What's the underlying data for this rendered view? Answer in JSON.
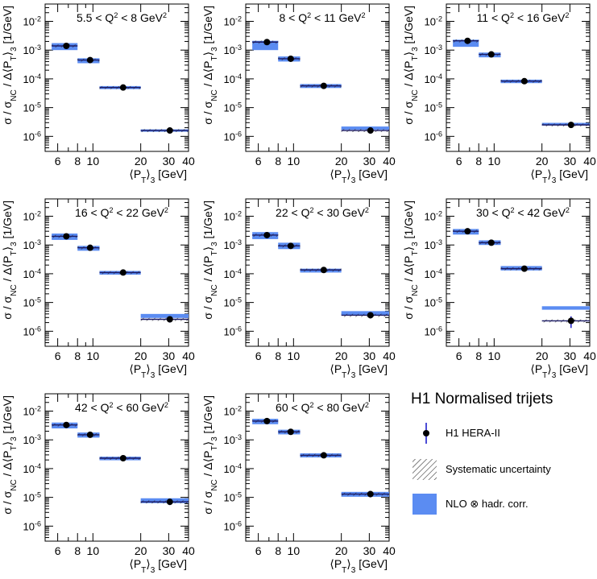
{
  "chart_data": {
    "type": "scatter",
    "title": "H1 Normalised trijets",
    "xlabel": "⟨P_T⟩_3 [GeV]",
    "xlabel_parts": [
      "⟨P",
      "T",
      "⟩",
      "3",
      " [GeV]"
    ],
    "ylabel": "σ / σ_NC / Δ⟨P_T⟩_3 [1/GeV]",
    "ylabel_parts": [
      "σ / σ",
      "NC",
      " / Δ⟨P",
      "T",
      "⟩",
      "3",
      " [1/GeV]"
    ],
    "xscale": "log",
    "yscale": "log",
    "xlim": [
      5,
      40
    ],
    "ylim": [
      3e-07,
      0.04
    ],
    "xticks": [
      6,
      8,
      10,
      20,
      30,
      40
    ],
    "yticks": [
      {
        "v": 1e-06,
        "base": "10",
        "exp": "-6"
      },
      {
        "v": 1e-05,
        "base": "10",
        "exp": "-5"
      },
      {
        "v": 0.0001,
        "base": "10",
        "exp": "-4"
      },
      {
        "v": 0.001,
        "base": "10",
        "exp": "-3"
      },
      {
        "v": 0.01,
        "base": "10",
        "exp": "-2"
      }
    ],
    "bins": [
      [
        5.5,
        8
      ],
      [
        8,
        11
      ],
      [
        11,
        20
      ],
      [
        20,
        40
      ]
    ],
    "x_centers": [
      6.8,
      9.6,
      15.5,
      30.5
    ],
    "panels": [
      {
        "label": "5.5 < Q² < 8 GeV²",
        "label_parts": [
          "5.5 < Q",
          "2",
          " < 8 GeV",
          "2"
        ],
        "data": [
          0.0014,
          0.00045,
          5e-05,
          1.6e-06
        ],
        "err": [
          0.0003,
          5e-05,
          5e-06,
          1e-07
        ],
        "nlo": [
          [
            0.001,
            0.00175
          ],
          [
            0.00035,
            0.00052
          ],
          [
            4.4e-05,
            5.6e-05
          ],
          [
            1.45e-06,
            1.75e-06
          ]
        ]
      },
      {
        "label": "8 < Q² < 11 GeV²",
        "label_parts": [
          "8 < Q",
          "2",
          " < 11 GeV",
          "2"
        ],
        "data": [
          0.0019,
          0.0005,
          5.7e-05,
          1.6e-06
        ],
        "err": [
          0.0002,
          5e-05,
          6e-06,
          3.5e-07
        ],
        "nlo": [
          [
            0.001,
            0.0021
          ],
          [
            0.0004,
            0.0006
          ],
          [
            4.8e-05,
            6.6e-05
          ],
          [
            1.7e-06,
            2.2e-06
          ]
        ]
      },
      {
        "label": "11 < Q² < 16 GeV²",
        "label_parts": [
          "11 < Q",
          "2",
          " < 16 GeV",
          "2"
        ],
        "data": [
          0.0021,
          0.00071,
          8.3e-05,
          2.5e-06
        ],
        "err": [
          0.0002,
          7e-05,
          8e-06,
          2e-07
        ],
        "nlo": [
          [
            0.0013,
            0.0023
          ],
          [
            0.00056,
            0.00082
          ],
          [
            7.1e-05,
            9.4e-05
          ],
          [
            2.4e-06,
            2.95e-06
          ]
        ]
      },
      {
        "label": "16 < Q² < 22 GeV²",
        "label_parts": [
          "16 < Q",
          "2",
          " < 22 GeV",
          "2"
        ],
        "data": [
          0.002,
          0.0008,
          0.00011,
          2.6e-06
        ],
        "err": [
          0.0002,
          8e-05,
          1e-05,
          6e-07
        ],
        "nlo": [
          [
            0.0015,
            0.0025
          ],
          [
            0.00063,
            0.00093
          ],
          [
            9.3e-05,
            0.000125
          ],
          [
            2.9e-06,
            4e-06
          ]
        ]
      },
      {
        "label": "22 < Q² < 30 GeV²",
        "label_parts": [
          "22 < Q",
          "2",
          " < 30 GeV",
          "2"
        ],
        "data": [
          0.0022,
          0.00093,
          0.000135,
          3.6e-06
        ],
        "err": [
          0.0002,
          9e-05,
          1.3e-05,
          8e-07
        ],
        "nlo": [
          [
            0.0016,
            0.0028
          ],
          [
            0.00072,
            0.0012
          ],
          [
            0.00011,
            0.00015
          ],
          [
            3.7e-06,
            5e-06
          ]
        ]
      },
      {
        "label": "30 < Q² < 42 GeV²",
        "label_parts": [
          "30 < Q",
          "2",
          " < 42 GeV",
          "2"
        ],
        "data": [
          0.003,
          0.0012,
          0.00015,
          2.3e-06
        ],
        "err": [
          0.0003,
          0.00011,
          1.5e-05,
          1e-06
        ],
        "nlo": [
          [
            0.0023,
            0.0036
          ],
          [
            0.001,
            0.00145
          ],
          [
            0.00013,
            0.000185
          ],
          [
            5.6e-06,
            7.4e-06
          ]
        ]
      },
      {
        "label": "42 < Q² < 60 GeV²",
        "label_parts": [
          "42 < Q",
          "2",
          " < 60 GeV",
          "2"
        ],
        "data": [
          0.0033,
          0.0015,
          0.00023,
          7e-06
        ],
        "err": [
          0.0003,
          0.00014,
          2e-05,
          1.6e-06
        ],
        "nlo": [
          [
            0.0025,
            0.004
          ],
          [
            0.0012,
            0.0018
          ],
          [
            0.000195,
            0.00026
          ],
          [
            6.3e-06,
            9.3e-06
          ]
        ]
      },
      {
        "label": "60 < Q² < 80 GeV²",
        "label_parts": [
          "60 < Q",
          "2",
          " < 80 GeV",
          "2"
        ],
        "data": [
          0.0045,
          0.0019,
          0.00029,
          1.3e-05
        ],
        "err": [
          0.0004,
          0.00018,
          2.5e-05,
          3e-06
        ],
        "nlo": [
          [
            0.0035,
            0.0054
          ],
          [
            0.00155,
            0.00225
          ],
          [
            0.000245,
            0.00034
          ],
          [
            1.05e-05,
            1.55e-05
          ]
        ]
      }
    ],
    "legend": {
      "title": "H1 Normalised trijets",
      "entries": [
        {
          "key": "data",
          "label": "H1 HERA-II"
        },
        {
          "key": "syst",
          "label": "Systematic uncertainty"
        },
        {
          "key": "nlo",
          "label": "NLO ⊗ hadr. corr."
        }
      ]
    },
    "colors": {
      "nlo": "#5b8cf2",
      "data": "#000000",
      "error_bar": "#1f1fcc",
      "hatch": "#333333"
    }
  }
}
